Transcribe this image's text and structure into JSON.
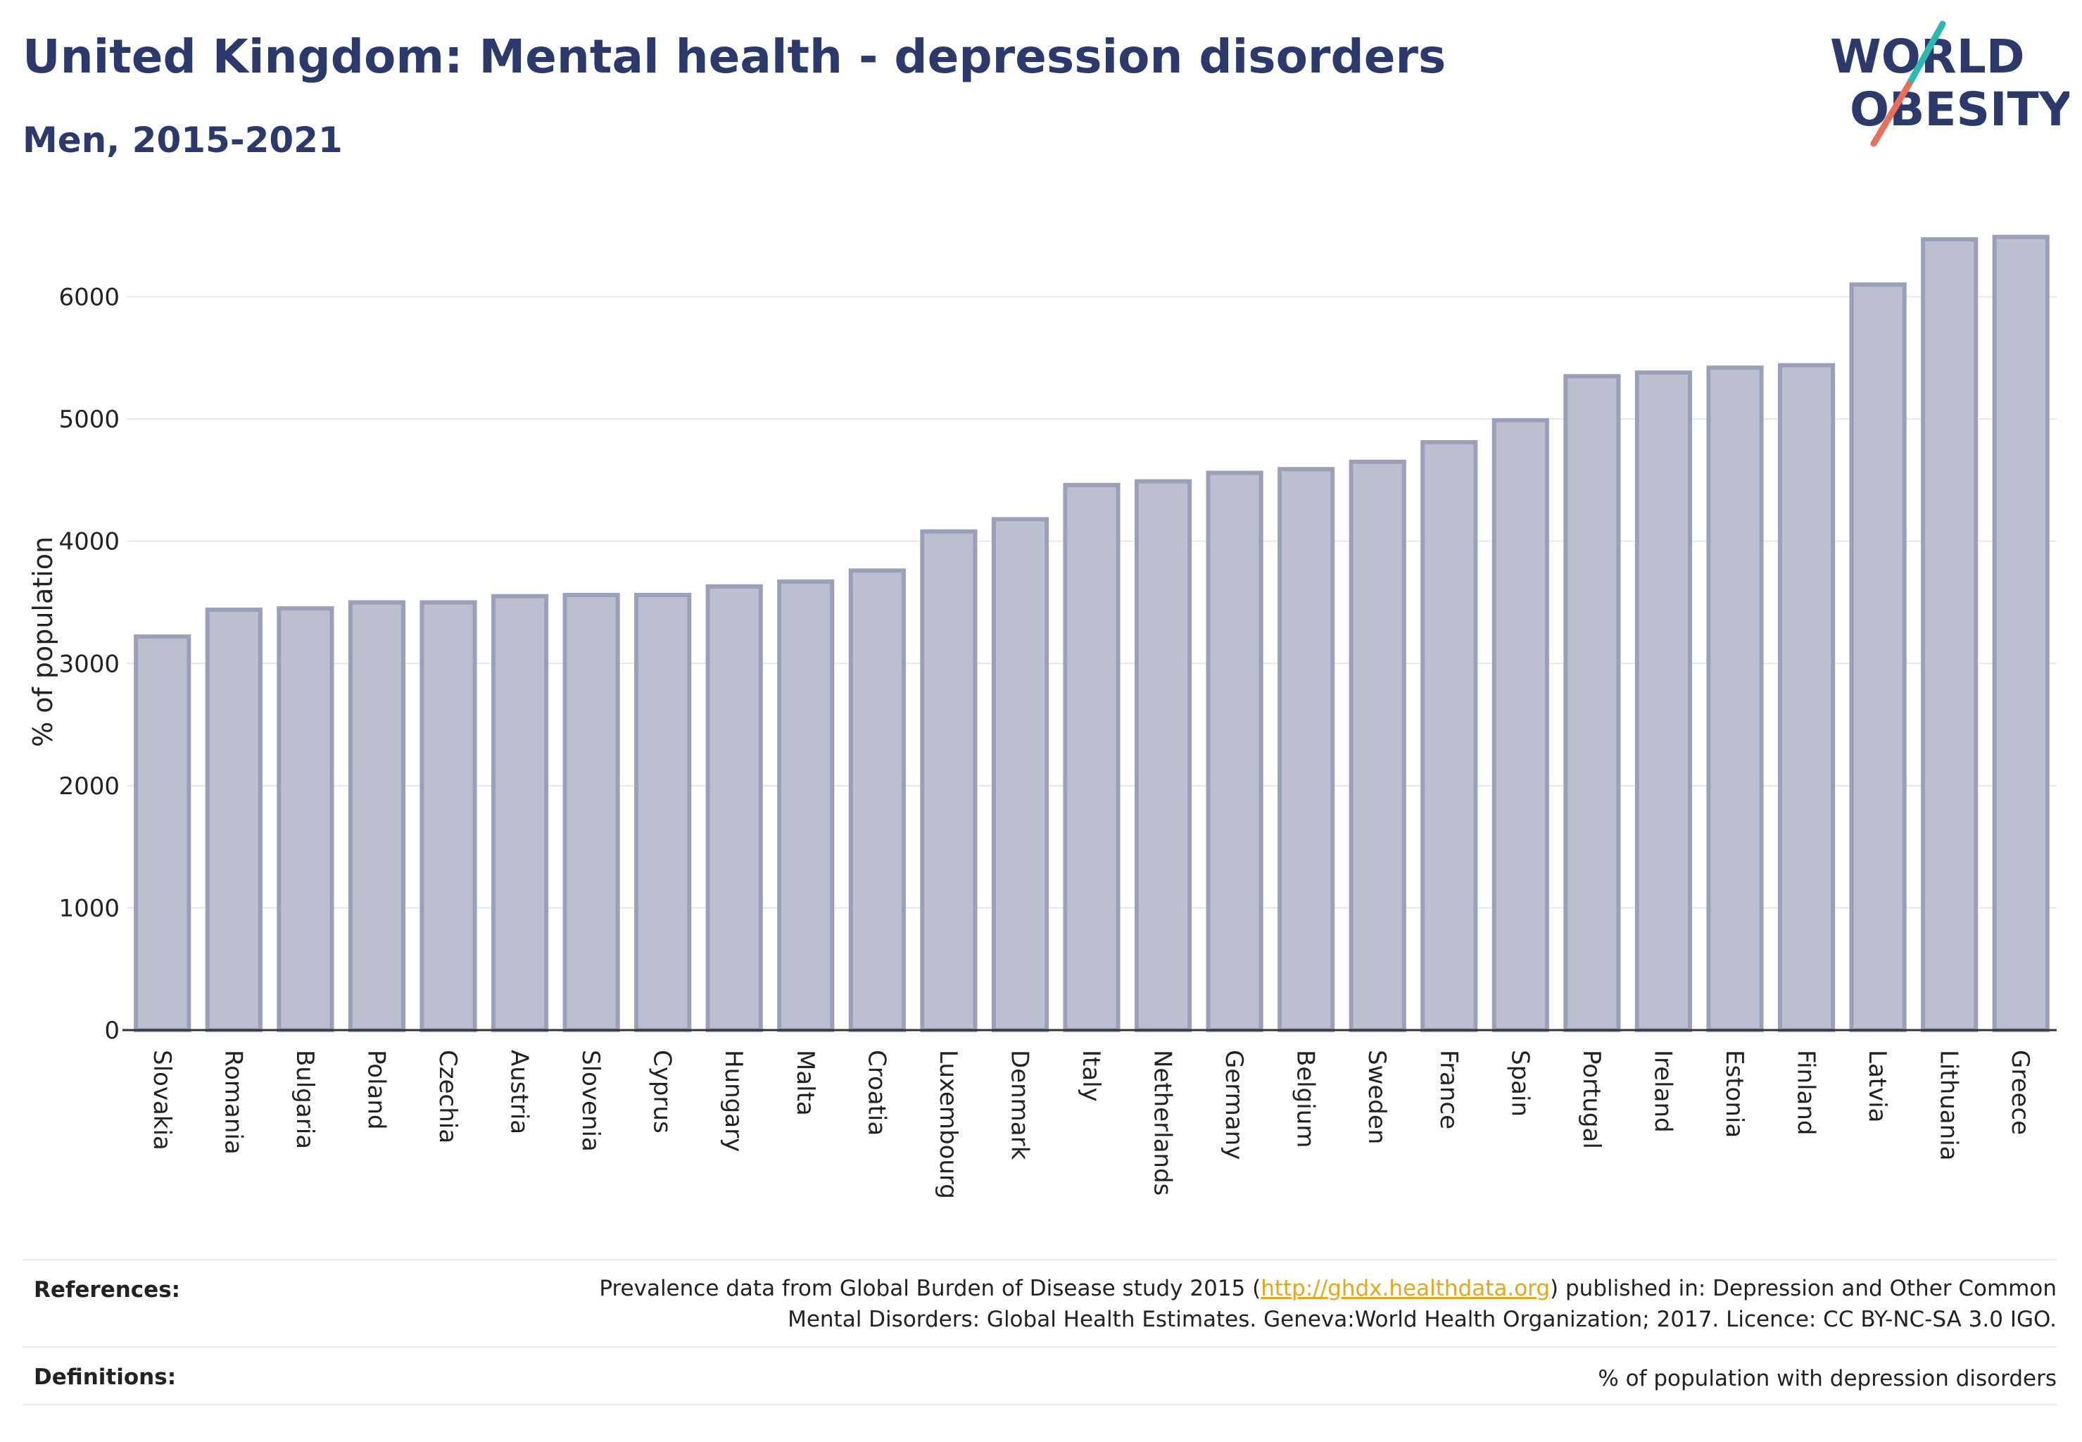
{
  "title": "United Kingdom: Mental health - depression disorders",
  "subtitle": "Men, 2015-2021",
  "logo": {
    "line1": "WORLD",
    "line2": "OBESITY",
    "accent_colors": [
      "#2bb8b0",
      "#e8705a"
    ]
  },
  "chart_data": {
    "type": "bar",
    "categories": [
      "Slovakia",
      "Romania",
      "Bulgaria",
      "Poland",
      "Czechia",
      "Austria",
      "Slovenia",
      "Cyprus",
      "Hungary",
      "Malta",
      "Croatia",
      "Luxembourg",
      "Denmark",
      "Italy",
      "Netherlands",
      "Germany",
      "Belgium",
      "Sweden",
      "France",
      "Spain",
      "Portugal",
      "Ireland",
      "Estonia",
      "Finland",
      "Latvia",
      "Lithuania",
      "Greece"
    ],
    "values": [
      3220,
      3440,
      3450,
      3500,
      3500,
      3550,
      3560,
      3560,
      3630,
      3670,
      3760,
      4080,
      4180,
      4460,
      4490,
      4560,
      4590,
      4650,
      4810,
      4990,
      5350,
      5380,
      5420,
      5440,
      6100,
      6470,
      6490
    ],
    "ylabel": "% of population",
    "xlabel": "",
    "ylim": [
      0,
      6700
    ],
    "yticks": [
      0,
      1000,
      2000,
      3000,
      4000,
      5000,
      6000
    ],
    "grid": true,
    "bar_fill": "#bcbfcf",
    "bar_stroke": "#9aa0ba"
  },
  "footer": {
    "references_label": "References:",
    "references_prefix": "Prevalence data from Global Burden of Disease study 2015 (",
    "references_link": "http://ghdx.healthdata.org",
    "references_suffix": ") published in: Depression and Other Common",
    "references_line2": "Mental Disorders: Global Health Estimates. Geneva:World Health Organization; 2017. Licence: CC BY-NC-SA 3.0 IGO.",
    "definitions_label": "Definitions:",
    "definitions_text": "% of population with depression disorders"
  }
}
